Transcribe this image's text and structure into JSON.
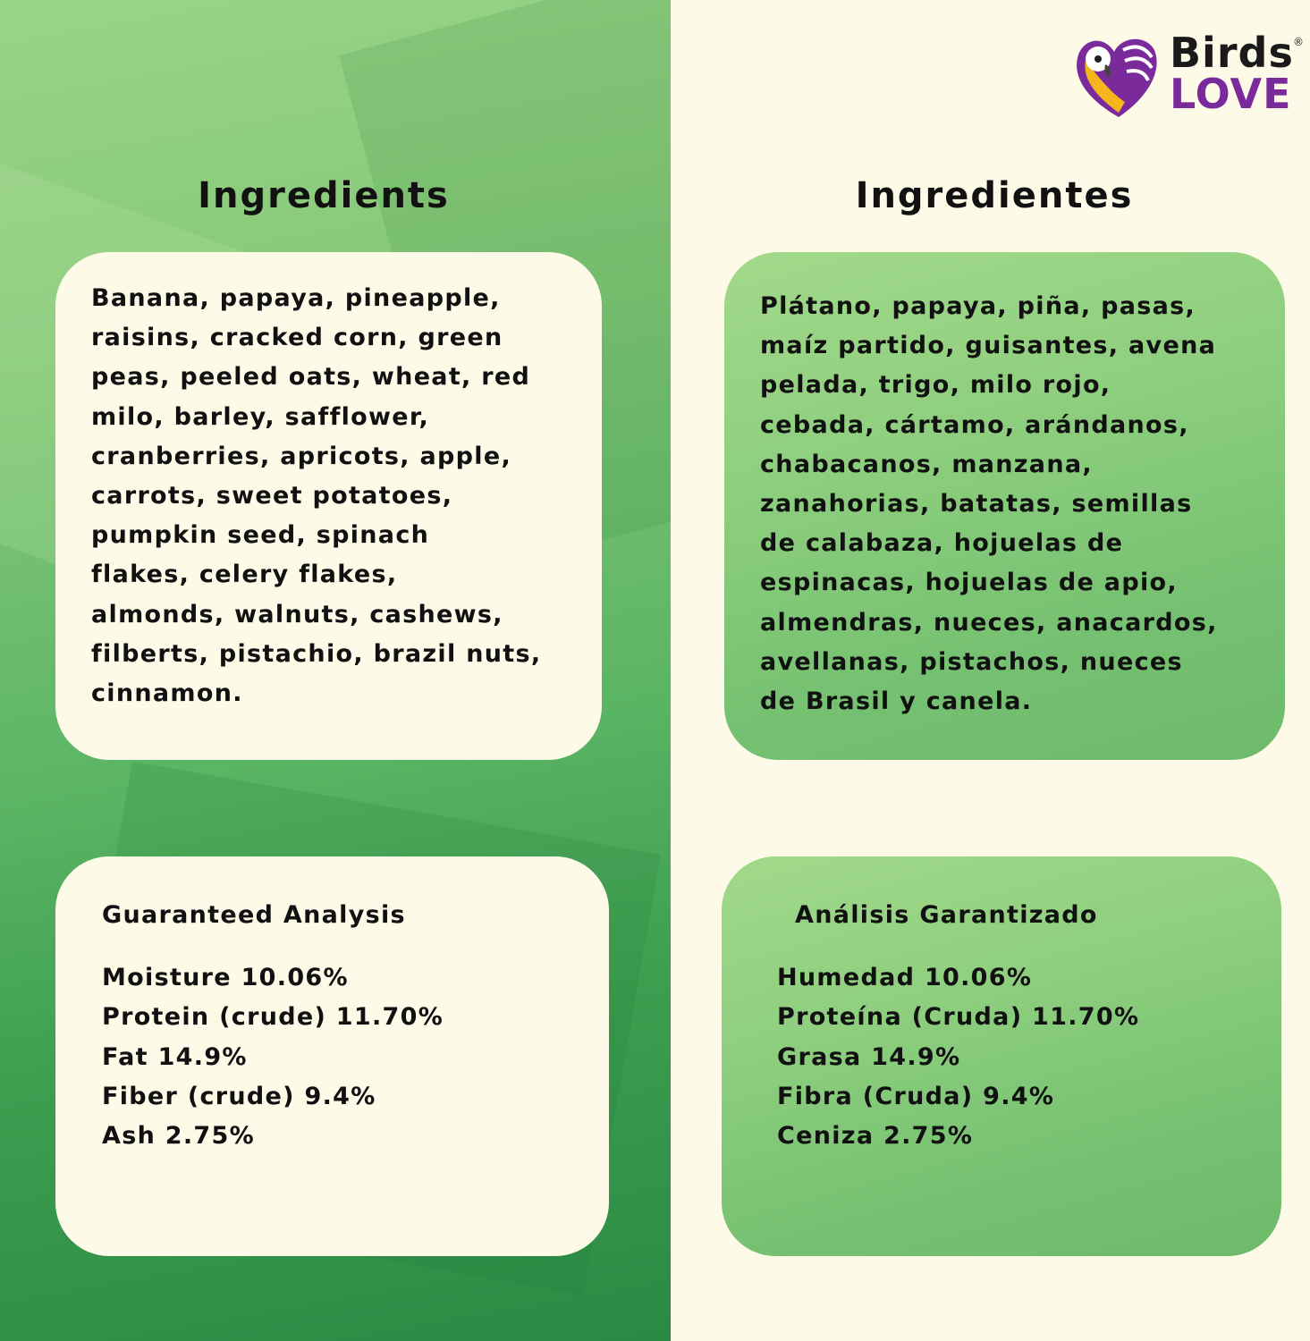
{
  "brand": {
    "name_line1": "Birds",
    "name_line2": "LOVE",
    "registered": "®",
    "colors": {
      "purple": "#7a2a9a",
      "yellow": "#f5b51c"
    }
  },
  "english": {
    "ingredients_heading": "Ingredients",
    "ingredients_lines": [
      "Banana, papaya, pineapple,",
      "raisins, cracked corn, green",
      "peas, peeled oats, wheat, red",
      "milo, barley, safflower,",
      "cranberries, apricots, apple,",
      "carrots, sweet potatoes,",
      "pumpkin seed, spinach",
      "flakes, celery flakes,",
      "almonds, walnuts, cashews,",
      "filberts, pistachio, brazil nuts,",
      "cinnamon."
    ],
    "analysis_heading": "Guaranteed Analysis",
    "analysis_lines": [
      "Moisture  10.06%",
      "Protein (crude) 11.70%",
      "Fat 14.9%",
      "Fiber (crude)  9.4%",
      "Ash 2.75%"
    ]
  },
  "spanish": {
    "ingredients_heading": "Ingredientes",
    "ingredients_lines": [
      "Plátano, papaya, piña, pasas,",
      "maíz partido, guisantes, avena",
      "pelada, trigo, milo rojo,",
      "cebada, cártamo, arándanos,",
      "chabacanos, manzana,",
      "zanahorias, batatas, semillas",
      "de calabaza, hojuelas de",
      "espinacas, hojuelas de apio,",
      "almendras, nueces, anacardos,",
      "avellanas, pistachos, nueces",
      "de Brasil y canela."
    ],
    "analysis_heading": "Análisis Garantizado",
    "analysis_lines": [
      "Humedad  10.06%",
      "Proteína (Cruda) 11.70%",
      "Grasa 14.9%",
      "Fibra (Cruda) 9.4%",
      "Ceniza  2.75%"
    ]
  }
}
